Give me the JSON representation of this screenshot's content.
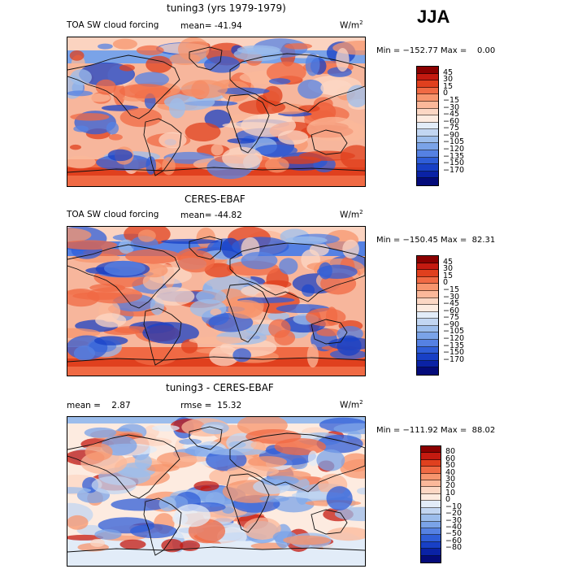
{
  "season": "JJA",
  "panels": [
    {
      "title": "tuning3 (yrs 1979-1979)",
      "field_label": "TOA SW cloud forcing",
      "mean_label": "mean= -41.94",
      "units_base": "W/m",
      "units_exp": "2",
      "minmax": "Min = −152.77 Max =    0.00",
      "colorbar": {
        "colors": [
          "#8b0000",
          "#c41a10",
          "#e0401e",
          "#f06a44",
          "#f7956e",
          "#fbb89a",
          "#fcd7c4",
          "#fdebe0",
          "#e2ecf8",
          "#c2d6f2",
          "#9cbdec",
          "#7aa3e8",
          "#5581e3",
          "#2f5ed8",
          "#1840c6",
          "#0a22a5",
          "#040b7a"
        ],
        "ticks": [
          "45",
          "30",
          "15",
          "0",
          "−15",
          "−30",
          "−45",
          "−60",
          "−75",
          "−90",
          "−105",
          "−120",
          "−135",
          "−150",
          "−170"
        ]
      }
    },
    {
      "title": "CERES-EBAF",
      "field_label": "TOA SW cloud forcing",
      "mean_label": "mean= -44.82",
      "units_base": "W/m",
      "units_exp": "2",
      "minmax": "Min = −150.45 Max =  82.31",
      "colorbar": {
        "colors": [
          "#8b0000",
          "#c41a10",
          "#e0401e",
          "#f06a44",
          "#f7956e",
          "#fbb89a",
          "#fcd7c4",
          "#fdebe0",
          "#e2ecf8",
          "#c2d6f2",
          "#9cbdec",
          "#7aa3e8",
          "#5581e3",
          "#2f5ed8",
          "#1840c6",
          "#0a22a5",
          "#040b7a"
        ],
        "ticks": [
          "45",
          "30",
          "15",
          "0",
          "−15",
          "−30",
          "−45",
          "−60",
          "−75",
          "−90",
          "−105",
          "−120",
          "−135",
          "−150",
          "−170"
        ]
      }
    },
    {
      "title": "tuning3 - CERES-EBAF",
      "field_label": "mean =    2.87",
      "mean_label": "rmse =  15.32",
      "units_base": "W/m",
      "units_exp": "2",
      "minmax": "Min = −111.92 Max =  88.02",
      "colorbar": {
        "colors": [
          "#8b0000",
          "#c41a10",
          "#e0401e",
          "#f06a44",
          "#f7956e",
          "#fbb89a",
          "#fcd7c4",
          "#fdebe0",
          "#e2ecf8",
          "#c2d6f2",
          "#9cbdec",
          "#7aa3e8",
          "#5581e3",
          "#2f5ed8",
          "#1840c6",
          "#0a22a5",
          "#040b7a"
        ],
        "ticks": [
          "80",
          "60",
          "50",
          "40",
          "30",
          "20",
          "10",
          "0",
          "−10",
          "−20",
          "−30",
          "−40",
          "−50",
          "−60",
          "−80"
        ]
      }
    }
  ]
}
